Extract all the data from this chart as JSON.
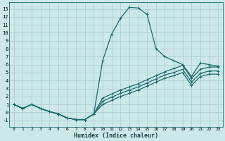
{
  "xlabel": "Humidex (Indice chaleur)",
  "background_color": "#cce8e8",
  "grid_color": "#aacccc",
  "line_color": "#1a6b6b",
  "x_ticks": [
    0,
    1,
    2,
    3,
    4,
    5,
    6,
    7,
    8,
    9,
    10,
    11,
    12,
    13,
    14,
    15,
    16,
    17,
    18,
    19,
    20,
    21,
    22,
    23
  ],
  "y_ticks": [
    -1,
    0,
    1,
    2,
    3,
    4,
    5,
    6,
    7,
    8,
    9,
    10,
    11,
    12,
    13
  ],
  "xlim": [
    -0.5,
    23.5
  ],
  "ylim": [
    -1.8,
    13.8
  ],
  "curve1_x": [
    0,
    1,
    2,
    3,
    4,
    5,
    6,
    7,
    8,
    9,
    10,
    11,
    12,
    13,
    14,
    15,
    16,
    17,
    18,
    19,
    20,
    21,
    22,
    23
  ],
  "curve1_y": [
    1.0,
    0.5,
    1.0,
    0.5,
    0.1,
    -0.2,
    -0.7,
    -0.9,
    -0.9,
    -0.2,
    6.5,
    9.8,
    11.8,
    13.2,
    13.1,
    12.3,
    8.0,
    7.0,
    6.5,
    6.0,
    4.5,
    6.2,
    6.0,
    5.8
  ],
  "curve2_x": [
    0,
    1,
    2,
    3,
    4,
    5,
    6,
    7,
    8,
    9,
    10,
    11,
    12,
    13,
    14,
    15,
    16,
    17,
    18,
    19,
    20,
    21,
    22,
    23
  ],
  "curve2_y": [
    1.0,
    0.5,
    1.0,
    0.5,
    0.1,
    -0.2,
    -0.7,
    -0.9,
    -0.9,
    -0.2,
    1.8,
    2.3,
    2.8,
    3.2,
    3.6,
    4.1,
    4.6,
    5.1,
    5.5,
    5.9,
    4.3,
    5.4,
    5.7,
    5.7
  ],
  "curve3_x": [
    0,
    1,
    2,
    3,
    4,
    5,
    6,
    7,
    8,
    9,
    10,
    11,
    12,
    13,
    14,
    15,
    16,
    17,
    18,
    19,
    20,
    21,
    22,
    23
  ],
  "curve3_y": [
    1.0,
    0.5,
    1.0,
    0.5,
    0.1,
    -0.2,
    -0.7,
    -0.9,
    -0.9,
    -0.2,
    1.4,
    1.9,
    2.4,
    2.8,
    3.2,
    3.7,
    4.2,
    4.7,
    5.0,
    5.4,
    3.8,
    4.9,
    5.2,
    5.2
  ],
  "curve4_x": [
    0,
    1,
    2,
    3,
    4,
    5,
    6,
    7,
    8,
    9,
    10,
    11,
    12,
    13,
    14,
    15,
    16,
    17,
    18,
    19,
    20,
    21,
    22,
    23
  ],
  "curve4_y": [
    1.0,
    0.5,
    1.0,
    0.5,
    0.1,
    -0.2,
    -0.7,
    -0.9,
    -0.9,
    -0.2,
    1.0,
    1.5,
    2.0,
    2.4,
    2.8,
    3.3,
    3.8,
    4.3,
    4.6,
    5.0,
    3.4,
    4.5,
    4.8,
    4.8
  ]
}
